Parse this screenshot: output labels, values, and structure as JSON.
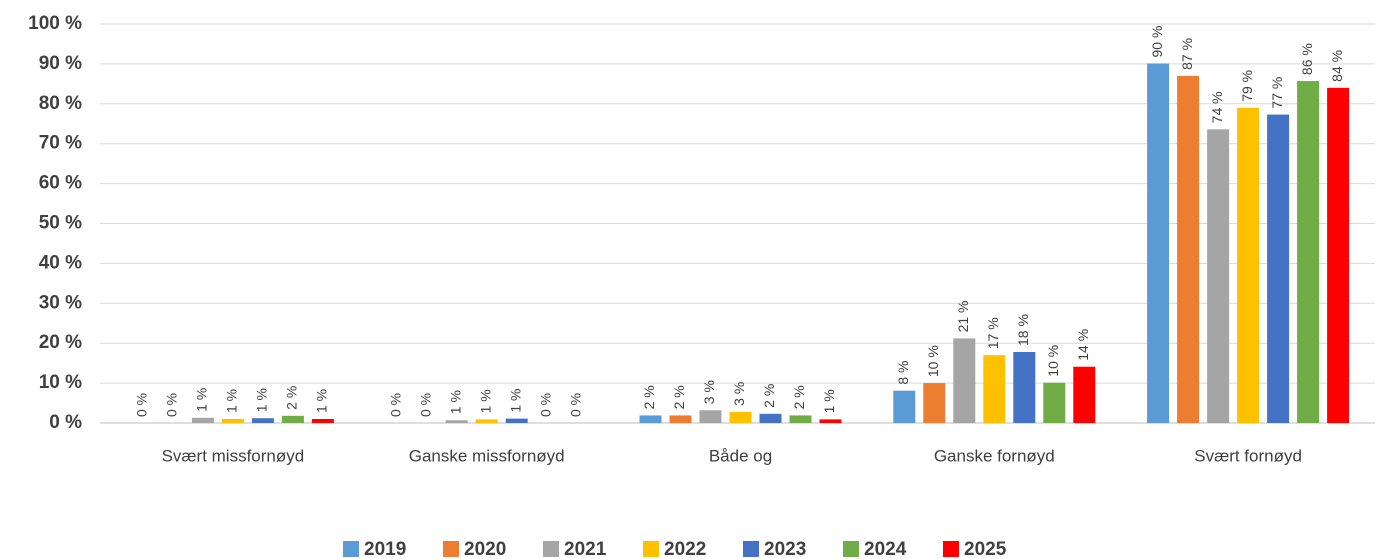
{
  "chart_data": {
    "type": "bar",
    "categories": [
      "Svært missfornøyd",
      "Ganske missfornøyd",
      "Både og",
      "Ganske fornøyd",
      "Svært fornøyd"
    ],
    "series": [
      {
        "name": "2019",
        "color": "#5b9bd5",
        "values": [
          0,
          0,
          1.9,
          8.1,
          90.1
        ],
        "value_labels": [
          "0 %",
          "0 %",
          "2 %",
          "8 %",
          "90 %"
        ]
      },
      {
        "name": "2020",
        "color": "#ed7d31",
        "values": [
          0,
          0,
          1.9,
          10,
          87
        ],
        "value_labels": [
          "0 %",
          "0 %",
          "2 %",
          "10 %",
          "87 %"
        ]
      },
      {
        "name": "2021",
        "color": "#a5a5a5",
        "values": [
          1.3,
          0.7,
          3.2,
          21.2,
          73.6
        ],
        "value_labels": [
          "1 %",
          "1 %",
          "3 %",
          "21 %",
          "74 %"
        ]
      },
      {
        "name": "2022",
        "color": "#ffc000",
        "values": [
          1,
          0.9,
          2.8,
          17,
          79
        ],
        "value_labels": [
          "1 %",
          "1 %",
          "3 %",
          "17 %",
          "79 %"
        ]
      },
      {
        "name": "2023",
        "color": "#4472c4",
        "values": [
          1.2,
          1.1,
          2.3,
          17.8,
          77.3
        ],
        "value_labels": [
          "1 %",
          "1 %",
          "2 %",
          "18 %",
          "77 %"
        ]
      },
      {
        "name": "2024",
        "color": "#70ad47",
        "values": [
          1.8,
          0,
          1.9,
          10.1,
          85.7
        ],
        "value_labels": [
          "2 %",
          "0 %",
          "2 %",
          "10 %",
          "86 %"
        ]
      },
      {
        "name": "2025",
        "color": "#ff0000",
        "values": [
          1,
          0,
          0.9,
          14.1,
          84
        ],
        "value_labels": [
          "1 %",
          "0 %",
          "1 %",
          "14 %",
          "84 %"
        ]
      }
    ],
    "ylim": [
      0,
      100
    ],
    "yticks": [
      {
        "value": 0,
        "label": "0 %"
      },
      {
        "value": 10,
        "label": "10 %"
      },
      {
        "value": 20,
        "label": "20 %"
      },
      {
        "value": 30,
        "label": "30 %"
      },
      {
        "value": 40,
        "label": "40 %"
      },
      {
        "value": 50,
        "label": "50 %"
      },
      {
        "value": 60,
        "label": "60 %"
      },
      {
        "value": 70,
        "label": "70 %"
      },
      {
        "value": 80,
        "label": "80 %"
      },
      {
        "value": 90,
        "label": "90 %"
      },
      {
        "value": 100,
        "label": "100 %"
      }
    ],
    "grid": true,
    "legend": "bottom"
  }
}
